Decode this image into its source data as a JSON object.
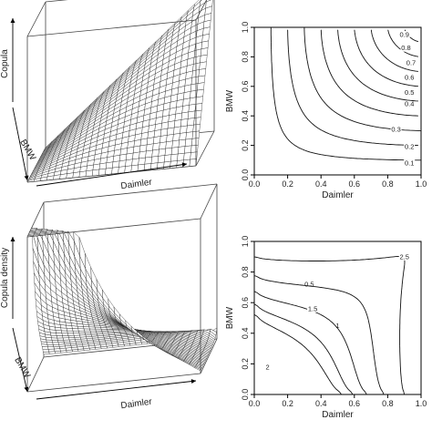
{
  "chart_data": [
    {
      "type": "surface3d",
      "panel": "top-left",
      "surface": "copula_cdf_gumbel",
      "axis_labels": {
        "x": "Daimler",
        "y": "BMW",
        "z": "Copula"
      }
    },
    {
      "type": "contour",
      "panel": "top-right",
      "surface": "copula_cdf_gumbel",
      "xlabel": "Daimler",
      "ylabel": "BMW",
      "xlim": [
        0.0,
        1.0
      ],
      "ylim": [
        0.0,
        1.0
      ],
      "xticks": [
        "0.0",
        "0.2",
        "0.4",
        "0.6",
        "0.8",
        "1.0"
      ],
      "yticks": [
        "0.0",
        "0.2",
        "0.4",
        "0.6",
        "0.8",
        "1.0"
      ],
      "levels": [
        0.1,
        0.2,
        0.3,
        0.4,
        0.5,
        0.6,
        0.7,
        0.8,
        0.9
      ],
      "level_labels": [
        "0.1",
        "0.2",
        "0.3",
        "0.4",
        "0.5",
        "0.6",
        "0.7",
        "0.8",
        "0.9"
      ]
    },
    {
      "type": "surface3d",
      "panel": "bottom-left",
      "surface": "copula_density_gumbel",
      "axis_labels": {
        "x": "Daimler",
        "y": "BMW",
        "z": "Copula density"
      }
    },
    {
      "type": "contour",
      "panel": "bottom-right",
      "surface": "copula_density_gumbel",
      "xlabel": "Daimler",
      "ylabel": "BMW",
      "xlim": [
        0.0,
        1.0
      ],
      "ylim": [
        0.0,
        1.0
      ],
      "xticks": [
        "0.0",
        "0.2",
        "0.4",
        "0.6",
        "0.8",
        "1.0"
      ],
      "yticks": [
        "0.0",
        "0.2",
        "0.4",
        "0.6",
        "0.8",
        "1.0"
      ],
      "levels": [
        0.5,
        1,
        1.5,
        2,
        2.5
      ],
      "level_labels": [
        "0.5",
        "1",
        "1.5",
        "2",
        "2.5"
      ]
    }
  ]
}
